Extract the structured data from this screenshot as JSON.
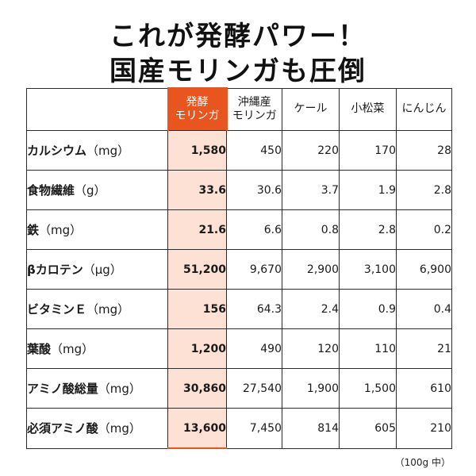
{
  "title": {
    "line1": "これが発酵パワー！",
    "line2": "国産モリンガも圧倒"
  },
  "table": {
    "headers": [
      {
        "line1": "発酵",
        "line2": "モリンガ"
      },
      {
        "line1": "沖縄産",
        "line2": "モリンガ"
      },
      {
        "line1": "ケール",
        "line2": ""
      },
      {
        "line1": "小松菜",
        "line2": ""
      },
      {
        "line1": "にんじん",
        "line2": ""
      }
    ],
    "rows": [
      {
        "label": "カルシウム",
        "unit": "（mg）",
        "values": [
          "1,580",
          "450",
          "220",
          "170",
          "28"
        ]
      },
      {
        "label": "食物繊維",
        "unit": "（g）",
        "values": [
          "33.6",
          "30.6",
          "3.7",
          "1.9",
          "2.8"
        ]
      },
      {
        "label": "鉄",
        "unit": "（mg）",
        "values": [
          "21.6",
          "6.6",
          "0.8",
          "2.8",
          "0.2"
        ]
      },
      {
        "label": "βカロテン",
        "unit": "（μg）",
        "values": [
          "51,200",
          "9,670",
          "2,900",
          "3,100",
          "6,900"
        ]
      },
      {
        "label": "ビタミンＥ",
        "unit": "（mg）",
        "values": [
          "156",
          "64.3",
          "2.4",
          "0.9",
          "0.4"
        ]
      },
      {
        "label": "葉酸",
        "unit": "（mg）",
        "values": [
          "1,200",
          "490",
          "120",
          "110",
          "21"
        ]
      },
      {
        "label": "アミノ酸総量",
        "unit": "（mg）",
        "values": [
          "30,860",
          "27,540",
          "1,900",
          "1,500",
          "610"
        ]
      },
      {
        "label": "必須アミノ酸",
        "unit": "（mg）",
        "values": [
          "13,600",
          "7,450",
          "814",
          "605",
          "210"
        ]
      }
    ]
  },
  "note": "（100g 中）",
  "colors": {
    "highlight_header": "#e8551f",
    "highlight_cell": "#fde1d5"
  }
}
